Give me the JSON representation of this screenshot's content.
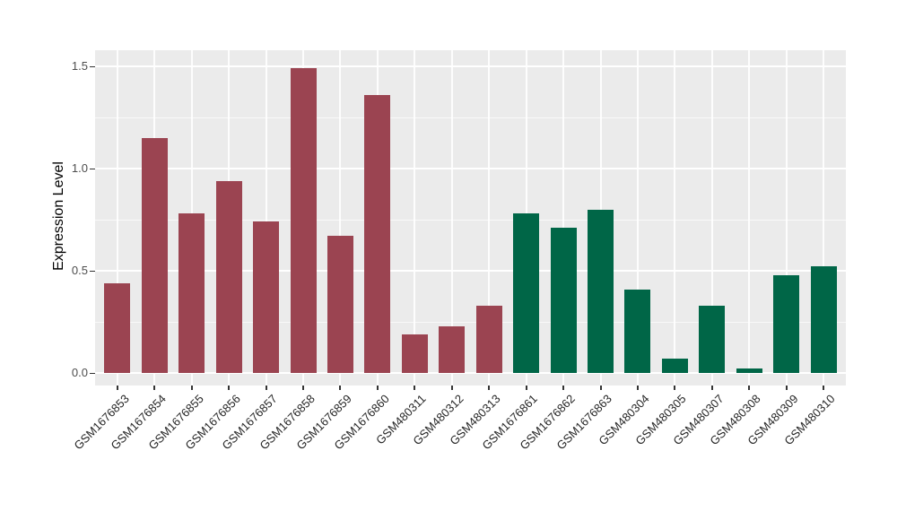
{
  "figure": {
    "background_color": "#FFFFFF",
    "panel_background_color": "#EBEBEB",
    "gridline_color": "#FFFFFF"
  },
  "chart_data": {
    "type": "bar",
    "title": "",
    "xlabel": "",
    "ylabel": "Expression Level",
    "ylim": [
      0,
      1.58
    ],
    "yticks": [
      0.0,
      0.5,
      1.0,
      1.5
    ],
    "ytick_labels": [
      "0.0",
      "0.5",
      "1.0",
      "1.5"
    ],
    "yticks_minor": [
      0.25,
      0.75,
      1.25
    ],
    "grid": "on",
    "legend_position": "none",
    "categories": [
      "GSM1676853",
      "GSM1676854",
      "GSM1676855",
      "GSM1676856",
      "GSM1676857",
      "GSM1676858",
      "GSM1676859",
      "GSM1676860",
      "GSM480311",
      "GSM480312",
      "GSM480313",
      "GSM1676861",
      "GSM1676862",
      "GSM1676863",
      "GSM480304",
      "GSM480305",
      "GSM480307",
      "GSM480308",
      "GSM480309",
      "GSM480310"
    ],
    "values": [
      0.44,
      1.15,
      0.78,
      0.94,
      0.74,
      1.49,
      0.67,
      1.36,
      0.19,
      0.23,
      0.33,
      0.78,
      0.71,
      0.8,
      0.41,
      0.07,
      0.33,
      0.02,
      0.48,
      0.52
    ],
    "bar_group": [
      0,
      0,
      0,
      0,
      0,
      0,
      0,
      0,
      0,
      0,
      0,
      1,
      1,
      1,
      1,
      1,
      1,
      1,
      1,
      1
    ],
    "group_colors": [
      "#9B4451",
      "#006647"
    ]
  }
}
